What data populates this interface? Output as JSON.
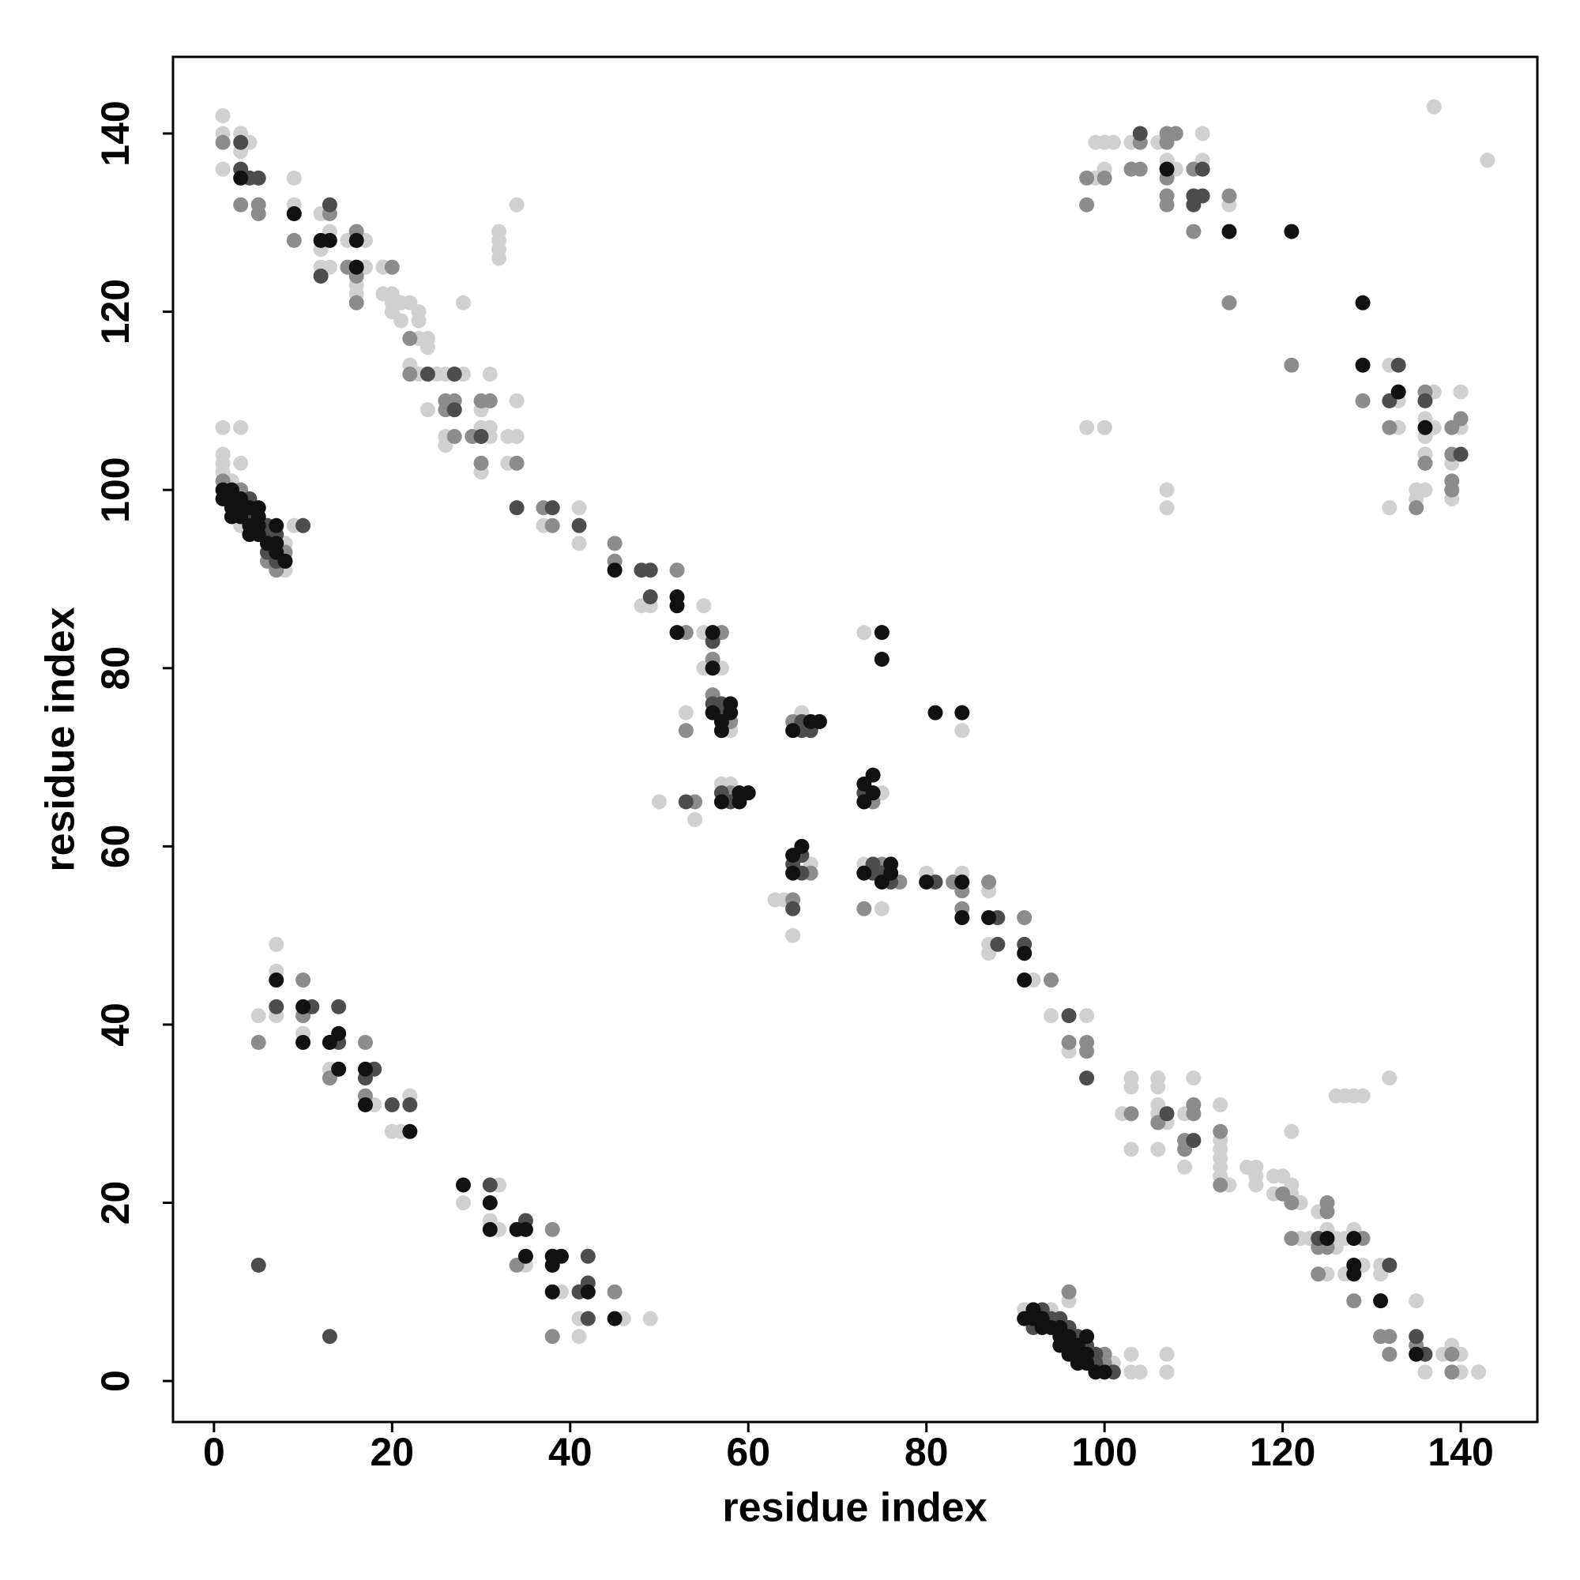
{
  "chart_data": {
    "type": "scatter",
    "xlabel": "residue index",
    "ylabel": "residue index",
    "xlim": [
      -4.6,
      148.6
    ],
    "ylim": [
      -4.6,
      148.6
    ],
    "xticks": [
      0,
      20,
      40,
      60,
      80,
      100,
      120,
      140
    ],
    "yticks": [
      0,
      20,
      40,
      60,
      80,
      100,
      120,
      140
    ],
    "grid": false,
    "series": [
      {
        "color": "#d0d0d0",
        "x": [
          1,
          1,
          1,
          3,
          3,
          4,
          9,
          9,
          12,
          13,
          12,
          12,
          13,
          15,
          17,
          16,
          16,
          17,
          19,
          19,
          20,
          20,
          21,
          20,
          21,
          22,
          23,
          23,
          23,
          24,
          24,
          22,
          23,
          25,
          26,
          28,
          24,
          28,
          26,
          26,
          30,
          30,
          31,
          31,
          30,
          31,
          32,
          32,
          32,
          32,
          34,
          34,
          33,
          34,
          33,
          41,
          37,
          41,
          48,
          49,
          55,
          55,
          55,
          57,
          53,
          58,
          50,
          54,
          57,
          58,
          63,
          64,
          65,
          67,
          66,
          73,
          75,
          73,
          75,
          84,
          80,
          84,
          87,
          87,
          87,
          92,
          94,
          98,
          96,
          103,
          103,
          102,
          106,
          106,
          106,
          106,
          107,
          106,
          103,
          110,
          109,
          109,
          113,
          113,
          113,
          113,
          114,
          113,
          113,
          116,
          117,
          117,
          117,
          119,
          120,
          119,
          121,
          121,
          122,
          121,
          123,
          122,
          126,
          127,
          128,
          129,
          132,
          124,
          126,
          127,
          128,
          125,
          125,
          126,
          129,
          127,
          131,
          131,
          135,
          136,
          139,
          138,
          140,
          140,
          142,
          99,
          99,
          100,
          100,
          101,
          103,
          106,
          107,
          108,
          111,
          111,
          114,
          98,
          100,
          107,
          107,
          132,
          133,
          133,
          132,
          137,
          136,
          137,
          136,
          136,
          136,
          135,
          135,
          140,
          140,
          139,
          139,
          137,
          143,
          1,
          3,
          1,
          1,
          3,
          1,
          2,
          3,
          9,
          8,
          8,
          91,
          94,
          96,
          103,
          101,
          103,
          104,
          107,
          107,
          7,
          7,
          5,
          7,
          10,
          13,
          18,
          20,
          21,
          22,
          28,
          32,
          31,
          32,
          35,
          39,
          41,
          41,
          46,
          49
        ],
        "y": [
          142,
          140,
          136,
          140,
          138,
          139,
          135,
          132,
          131,
          129,
          127,
          125,
          125,
          128,
          128,
          123,
          122,
          125,
          125,
          122,
          122,
          121,
          121,
          120,
          119,
          121,
          120,
          119,
          117,
          117,
          116,
          114,
          113,
          113,
          113,
          113,
          109,
          121,
          106,
          105,
          109,
          107,
          107,
          106,
          102,
          113,
          129,
          128,
          127,
          126,
          132,
          110,
          106,
          106,
          103,
          98,
          96,
          94,
          87,
          87,
          87,
          84,
          80,
          80,
          75,
          73,
          65,
          63,
          67,
          67,
          54,
          54,
          50,
          58,
          75,
          84,
          66,
          58,
          53,
          73,
          57,
          57,
          55,
          49,
          48,
          45,
          41,
          41,
          37,
          34,
          33,
          30,
          34,
          33,
          31,
          30,
          29,
          26,
          26,
          34,
          30,
          24,
          31,
          27,
          24,
          23,
          22,
          26,
          25,
          24,
          24,
          23,
          22,
          23,
          23,
          21,
          22,
          21,
          20,
          28,
          16,
          16,
          32,
          32,
          32,
          32,
          34,
          19,
          16,
          16,
          17,
          17,
          12,
          15,
          13,
          12,
          13,
          12,
          9,
          1,
          4,
          3,
          3,
          1,
          1,
          135,
          139,
          139,
          136,
          139,
          139,
          139,
          137,
          136,
          140,
          137,
          132,
          107,
          107,
          100,
          98,
          114,
          110,
          107,
          98,
          111,
          108,
          107,
          106,
          104,
          100,
          100,
          99,
          111,
          107,
          103,
          99,
          143,
          137,
          107,
          107,
          104,
          103,
          103,
          102,
          101,
          96,
          96,
          94,
          91,
          8,
          8,
          9,
          3,
          2,
          1,
          1,
          3,
          1,
          49,
          46,
          41,
          41,
          39,
          35,
          31,
          28,
          28,
          32,
          20,
          22,
          18,
          17,
          13,
          10,
          7,
          5,
          7,
          7
        ]
      },
      {
        "color": "#8c8c8c",
        "x": [
          1,
          3,
          5,
          5,
          9,
          13,
          16,
          15,
          16,
          16,
          20,
          22,
          22,
          26,
          27,
          26,
          27,
          30,
          31,
          29,
          30,
          34,
          37,
          38,
          45,
          45,
          52,
          53,
          57,
          56,
          56,
          58,
          53,
          54,
          58,
          65,
          67,
          65,
          74,
          75,
          77,
          73,
          83,
          84,
          84,
          87,
          91,
          94,
          96,
          98,
          98,
          103,
          106,
          110,
          110,
          109,
          109,
          113,
          113,
          120,
          121,
          121,
          125,
          125,
          129,
          124,
          125,
          124,
          128,
          131,
          132,
          132,
          135,
          139,
          139,
          98,
          98,
          100,
          103,
          104,
          104,
          107,
          108,
          107,
          107,
          107,
          107,
          110,
          110,
          114,
          114,
          121,
          129,
          132,
          136,
          136,
          135,
          139,
          140,
          139,
          139,
          139,
          1,
          3,
          8,
          6,
          7,
          96,
          100,
          100,
          5,
          10,
          10,
          13,
          17,
          17,
          34,
          38,
          38,
          45
        ],
        "y": [
          139,
          132,
          132,
          131,
          128,
          131,
          129,
          125,
          124,
          121,
          125,
          117,
          113,
          110,
          110,
          109,
          106,
          110,
          110,
          106,
          103,
          103,
          98,
          96,
          94,
          92,
          91,
          84,
          84,
          81,
          77,
          74,
          73,
          65,
          66,
          54,
          57,
          74,
          65,
          58,
          56,
          53,
          56,
          55,
          53,
          56,
          52,
          45,
          38,
          38,
          37,
          30,
          29,
          31,
          30,
          27,
          26,
          28,
          22,
          21,
          20,
          16,
          20,
          19,
          16,
          15,
          15,
          12,
          9,
          5,
          5,
          3,
          4,
          3,
          1,
          132,
          135,
          135,
          136,
          139,
          136,
          140,
          140,
          139,
          135,
          133,
          132,
          136,
          129,
          133,
          121,
          114,
          110,
          107,
          111,
          103,
          98,
          107,
          108,
          104,
          101,
          100,
          101,
          100,
          93,
          92,
          91,
          10,
          3,
          2,
          38,
          45,
          41,
          34,
          38,
          32,
          13,
          17,
          5,
          10
        ]
      },
      {
        "color": "#4d4d4d",
        "x": [
          3,
          3,
          4,
          5,
          13,
          12,
          27,
          24,
          27,
          30,
          34,
          38,
          41,
          48,
          49,
          49,
          56,
          56,
          57,
          57,
          53,
          57,
          58,
          65,
          66,
          65,
          66,
          66,
          66,
          67,
          73,
          74,
          74,
          75,
          76,
          81,
          88,
          88,
          91,
          96,
          98,
          107,
          110,
          124,
          132,
          135,
          136,
          104,
          111,
          110,
          111,
          110,
          133,
          132,
          136,
          140,
          4,
          4,
          6,
          10,
          6,
          7,
          6,
          7,
          93,
          94,
          95,
          92,
          96,
          97,
          98,
          99,
          99,
          101,
          7,
          11,
          14,
          14,
          18,
          17,
          20,
          22,
          31,
          35,
          42,
          41,
          42,
          42,
          5,
          13
        ],
        "y": [
          139,
          136,
          135,
          135,
          132,
          124,
          113,
          113,
          109,
          106,
          98,
          98,
          96,
          91,
          91,
          88,
          83,
          76,
          76,
          75,
          65,
          66,
          65,
          53,
          59,
          58,
          57,
          74,
          73,
          73,
          66,
          58,
          57,
          57,
          56,
          56,
          52,
          49,
          49,
          41,
          34,
          30,
          27,
          16,
          13,
          5,
          3,
          140,
          136,
          133,
          133,
          132,
          114,
          110,
          110,
          104,
          99,
          97,
          96,
          96,
          95,
          95,
          93,
          92,
          8,
          7,
          7,
          6,
          6,
          5,
          4,
          3,
          2,
          1,
          42,
          42,
          42,
          38,
          35,
          34,
          31,
          31,
          22,
          18,
          14,
          10,
          11,
          7,
          13,
          5
        ]
      },
      {
        "color": "#111111",
        "x": [
          3,
          9,
          12,
          13,
          16,
          16,
          45,
          52,
          52,
          52,
          56,
          56,
          58,
          56,
          58,
          57,
          57,
          59,
          60,
          57,
          59,
          65,
          66,
          65,
          65,
          67,
          68,
          75,
          75,
          73,
          74,
          74,
          73,
          76,
          73,
          76,
          75,
          81,
          84,
          80,
          84,
          84,
          87,
          91,
          91,
          125,
          128,
          128,
          128,
          131,
          135,
          107,
          114,
          121,
          129,
          129,
          133,
          136,
          1,
          2,
          1,
          2,
          3,
          2,
          3,
          4,
          5,
          2,
          3,
          5,
          4,
          5,
          7,
          4,
          5,
          6,
          7,
          7,
          8,
          92,
          91,
          92,
          93,
          93,
          94,
          95,
          95,
          96,
          98,
          95,
          96,
          97,
          96,
          97,
          98,
          97,
          98,
          99,
          100,
          7,
          10,
          10,
          13,
          14,
          14,
          17,
          17,
          22,
          28,
          31,
          31,
          34,
          35,
          35,
          38,
          39,
          38,
          38,
          42,
          45
        ],
        "y": [
          135,
          131,
          128,
          128,
          128,
          125,
          91,
          88,
          87,
          84,
          84,
          80,
          76,
          75,
          75,
          74,
          73,
          66,
          66,
          65,
          65,
          59,
          60,
          57,
          73,
          74,
          74,
          84,
          81,
          67,
          68,
          66,
          65,
          58,
          57,
          57,
          56,
          75,
          75,
          56,
          56,
          52,
          52,
          48,
          45,
          16,
          16,
          13,
          12,
          9,
          3,
          136,
          129,
          129,
          121,
          114,
          111,
          107,
          100,
          100,
          99,
          99,
          99,
          98,
          98,
          98,
          98,
          97,
          97,
          97,
          96,
          96,
          96,
          95,
          95,
          94,
          94,
          93,
          92,
          8,
          7,
          7,
          7,
          6,
          6,
          6,
          5,
          5,
          5,
          4,
          4,
          4,
          3,
          3,
          3,
          2,
          2,
          1,
          1,
          45,
          42,
          38,
          38,
          39,
          35,
          35,
          31,
          28,
          22,
          20,
          17,
          17,
          17,
          14,
          14,
          14,
          13,
          10,
          10,
          7
        ]
      }
    ]
  }
}
